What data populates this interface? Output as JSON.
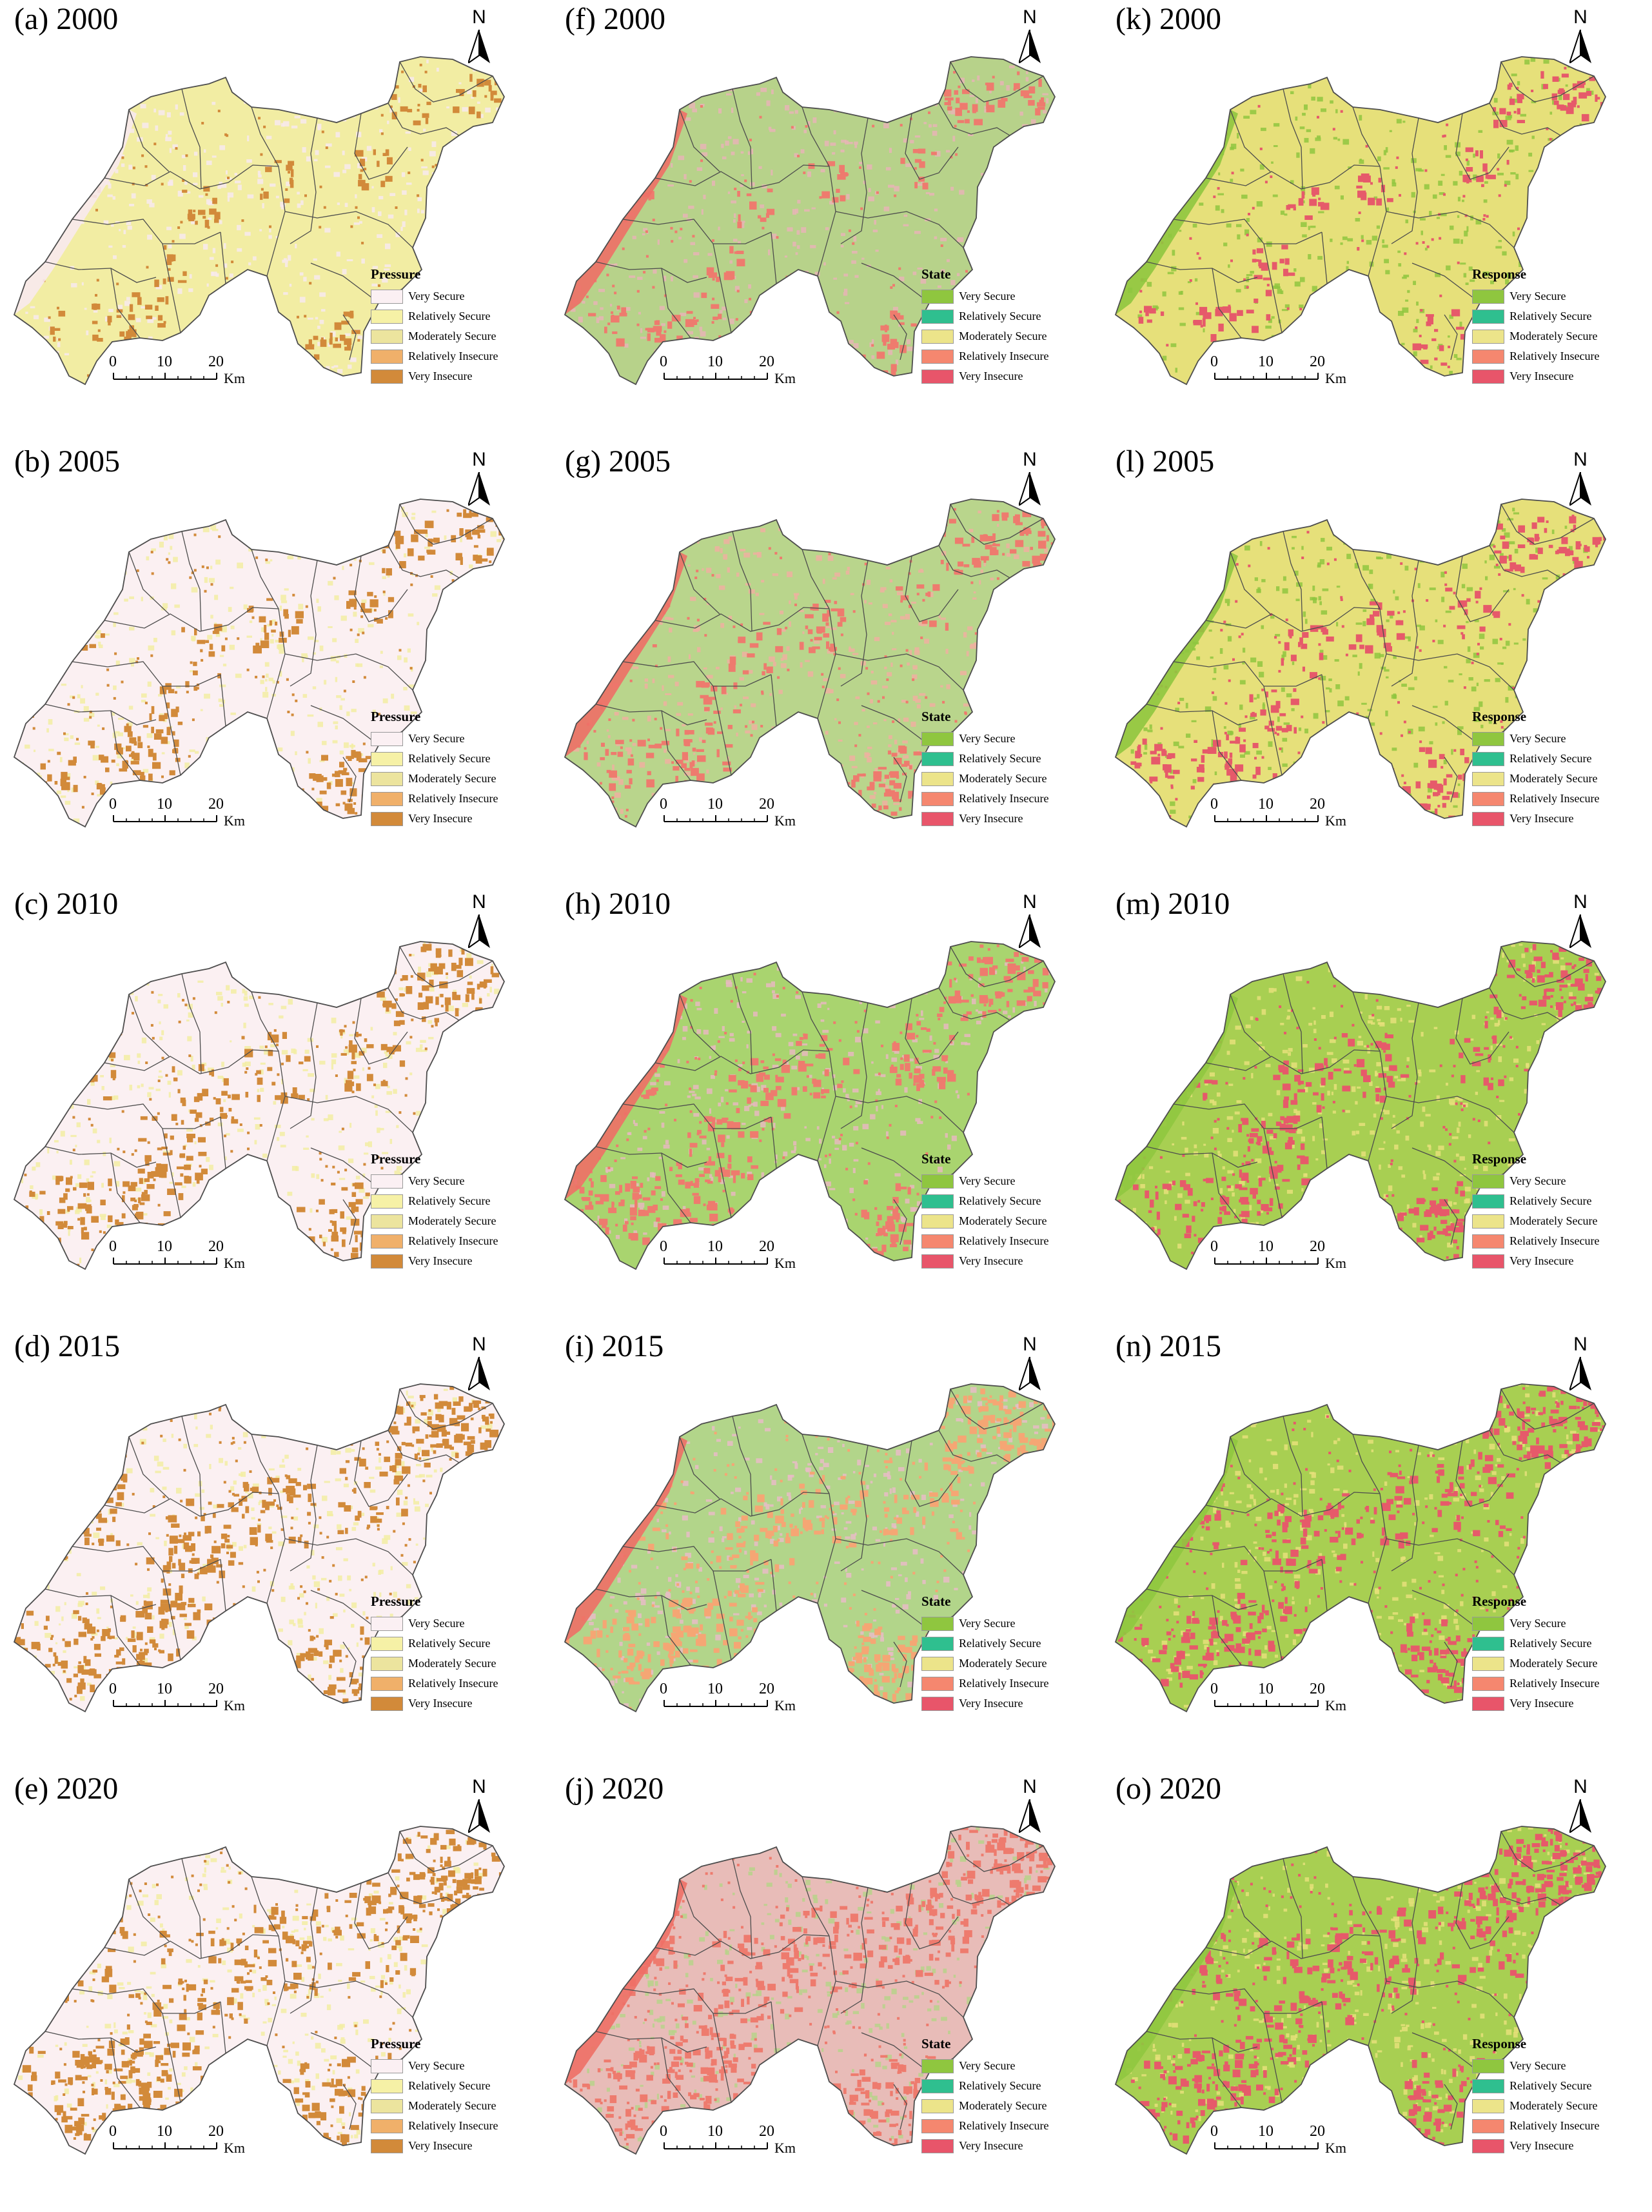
{
  "scale": {
    "ticks": [
      "0",
      "10",
      "20"
    ],
    "unit": "Km"
  },
  "north_label": "N",
  "panels": [
    {
      "id": "a",
      "title": "(a) 2000",
      "legend_title": "Pressure",
      "variant": "pressure",
      "year": "2000",
      "map_colors": {
        "base": "#f2eda3",
        "patch": "#d28a3a",
        "accent": "#f8e9ee"
      }
    },
    {
      "id": "b",
      "title": "(b) 2005",
      "legend_title": "Pressure",
      "variant": "pressure",
      "year": "2005",
      "map_colors": {
        "base": "#fbf0f2",
        "patch": "#d28a3a",
        "accent": "#f2eda3"
      }
    },
    {
      "id": "c",
      "title": "(c) 2010",
      "legend_title": "Pressure",
      "variant": "pressure",
      "year": "2010",
      "map_colors": {
        "base": "#fbf0f2",
        "patch": "#d28a3a",
        "accent": "#f2eda3"
      }
    },
    {
      "id": "d",
      "title": "(d) 2015",
      "legend_title": "Pressure",
      "variant": "pressure",
      "year": "2015",
      "map_colors": {
        "base": "#fbf0f2",
        "patch": "#d28a3a",
        "accent": "#f2eda3"
      }
    },
    {
      "id": "e",
      "title": "(e) 2020",
      "legend_title": "Pressure",
      "variant": "pressure",
      "year": "2020",
      "map_colors": {
        "base": "#fbf0f2",
        "patch": "#d28a3a",
        "accent": "#f2eda3"
      }
    },
    {
      "id": "f",
      "title": "(f) 2000",
      "legend_title": "State",
      "variant": "state",
      "year": "2000",
      "map_colors": {
        "base": "#b7d28a",
        "patch": "#ee7b6e",
        "accent": "#e8b5b5"
      }
    },
    {
      "id": "g",
      "title": "(g) 2005",
      "legend_title": "State",
      "variant": "state",
      "year": "2005",
      "map_colors": {
        "base": "#b9d58c",
        "patch": "#ee7b6e",
        "accent": "#eeb0a0"
      }
    },
    {
      "id": "h",
      "title": "(h) 2010",
      "legend_title": "State",
      "variant": "state",
      "year": "2010",
      "map_colors": {
        "base": "#a9d46f",
        "patch": "#ee7b6e",
        "accent": "#e8b8c0"
      }
    },
    {
      "id": "i",
      "title": "(i) 2015",
      "legend_title": "State",
      "variant": "state",
      "year": "2015",
      "map_colors": {
        "base": "#b2d58a",
        "patch": "#f5a674",
        "accent": "#e8bcc6"
      }
    },
    {
      "id": "j",
      "title": "(j) 2020",
      "legend_title": "State",
      "variant": "state",
      "year": "2020",
      "map_colors": {
        "base": "#e8bcb8",
        "patch": "#ee7b6e",
        "accent": "#b7d28a"
      }
    },
    {
      "id": "k",
      "title": "(k) 2000",
      "legend_title": "Response",
      "variant": "response",
      "year": "2000",
      "map_colors": {
        "base": "#e6e07a",
        "patch": "#e65a6a",
        "accent": "#8fc63f"
      }
    },
    {
      "id": "l",
      "title": "(l) 2005",
      "legend_title": "Response",
      "variant": "response",
      "year": "2005",
      "map_colors": {
        "base": "#e6e07a",
        "patch": "#e65a6a",
        "accent": "#8fc63f"
      }
    },
    {
      "id": "m",
      "title": "(m) 2010",
      "legend_title": "Response",
      "variant": "response",
      "year": "2010",
      "map_colors": {
        "base": "#a8cf52",
        "patch": "#e65a6a",
        "accent": "#e6e07a"
      }
    },
    {
      "id": "n",
      "title": "(n) 2015",
      "legend_title": "Response",
      "variant": "response",
      "year": "2015",
      "map_colors": {
        "base": "#a8cf52",
        "patch": "#e65a6a",
        "accent": "#e6e07a"
      }
    },
    {
      "id": "o",
      "title": "(o) 2020",
      "legend_title": "Response",
      "variant": "response",
      "year": "2020",
      "map_colors": {
        "base": "#a8cf52",
        "patch": "#e65a6a",
        "accent": "#e6e07a"
      }
    }
  ],
  "legend_classes": [
    "Very Secure",
    "Relatively Secure",
    "Moderately Secure",
    "Relatively Insecure",
    "Very Insecure"
  ],
  "legend_colors": {
    "pressure": [
      "#fbf0f3",
      "#f6f1a6",
      "#ece49e",
      "#f0b06a",
      "#d28a3a"
    ],
    "state": [
      "#8fc63f",
      "#2fbf8f",
      "#ece48a",
      "#f5876f",
      "#e8556a"
    ],
    "response": [
      "#8fc63f",
      "#2fbf8f",
      "#ece48a",
      "#f5876f",
      "#e8556a"
    ]
  },
  "shared": {
    "boundary_color": "#4d4d4d",
    "water_color": "#ffffff"
  }
}
